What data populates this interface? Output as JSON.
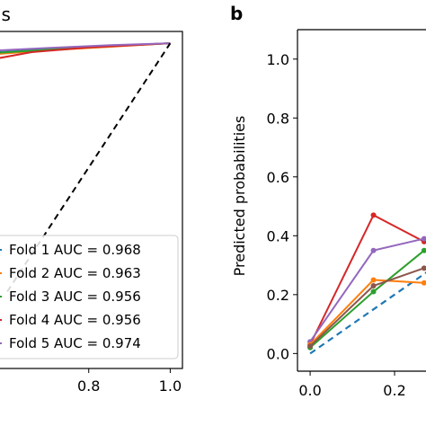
{
  "figure": {
    "left_title_fragment": "ls",
    "right_panel_letter": "b"
  },
  "chart_data": [
    {
      "type": "line",
      "panel": "a",
      "title": "ls",
      "xlabel": "",
      "ylabel": "",
      "xlim": [
        0.58,
        1.03
      ],
      "ylim": [
        0.45,
        1.02
      ],
      "x_ticks": [
        {
          "value": 0.8,
          "label": "0.8"
        },
        {
          "value": 1.0,
          "label": "1.0"
        }
      ],
      "y_ticks": [],
      "grid": false,
      "legend_position": "lower-right",
      "reference_line": {
        "x": [
          0.6,
          1.0
        ],
        "y": [
          0.58,
          1.0
        ],
        "style": "dashed",
        "color": "#000000"
      },
      "series": [
        {
          "name": "Fold 1 AUC = 0.968",
          "color": "#1f77b4",
          "x": [
            0.58,
            0.7,
            0.85,
            1.0
          ],
          "y": [
            0.985,
            0.99,
            0.995,
            1.0
          ]
        },
        {
          "name": "Fold 2 AUC = 0.963",
          "color": "#ff7f0e",
          "x": [
            0.58,
            0.7,
            0.85,
            1.0
          ],
          "y": [
            0.982,
            0.988,
            0.994,
            1.0
          ]
        },
        {
          "name": "Fold 3 AUC = 0.956",
          "color": "#2ca02c",
          "x": [
            0.58,
            0.72,
            0.88,
            1.0
          ],
          "y": [
            0.984,
            0.99,
            0.996,
            1.0
          ]
        },
        {
          "name": "Fold 4 AUC = 0.956",
          "color": "#d62728",
          "x": [
            0.58,
            0.66,
            0.8,
            1.0
          ],
          "y": [
            0.975,
            0.985,
            0.993,
            1.0
          ]
        },
        {
          "name": "Fold 5 AUC = 0.974",
          "color": "#9467bd",
          "x": [
            0.58,
            0.7,
            0.86,
            1.0
          ],
          "y": [
            0.988,
            0.992,
            0.997,
            1.0
          ]
        }
      ]
    },
    {
      "type": "line",
      "panel": "b",
      "title": "",
      "xlabel": "",
      "ylabel": "Predicted probabilities",
      "xlim": [
        -0.03,
        0.3
      ],
      "ylim": [
        -0.06,
        1.1
      ],
      "x_ticks": [
        {
          "value": 0.0,
          "label": "0.0"
        },
        {
          "value": 0.2,
          "label": "0.2"
        }
      ],
      "y_ticks": [
        {
          "value": 0.0,
          "label": "0.0"
        },
        {
          "value": 0.2,
          "label": "0.2"
        },
        {
          "value": 0.4,
          "label": "0.4"
        },
        {
          "value": 0.6,
          "label": "0.6"
        },
        {
          "value": 0.8,
          "label": "0.8"
        },
        {
          "value": 1.0,
          "label": "1.0"
        }
      ],
      "grid": false,
      "reference_line": {
        "x": [
          0.0,
          0.3
        ],
        "y": [
          0.0,
          0.3
        ],
        "style": "dashed",
        "color": "#1f77b4"
      },
      "series": [
        {
          "color": "#d62728",
          "x": [
            0.0,
            0.15,
            0.27
          ],
          "y": [
            0.03,
            0.47,
            0.38
          ]
        },
        {
          "color": "#9467bd",
          "x": [
            0.0,
            0.15,
            0.27
          ],
          "y": [
            0.04,
            0.35,
            0.39
          ]
        },
        {
          "color": "#ff7f0e",
          "x": [
            0.0,
            0.15,
            0.27
          ],
          "y": [
            0.03,
            0.25,
            0.24
          ]
        },
        {
          "color": "#2ca02c",
          "x": [
            0.0,
            0.15,
            0.27
          ],
          "y": [
            0.02,
            0.21,
            0.35
          ]
        },
        {
          "color": "#8c564b",
          "x": [
            0.0,
            0.15,
            0.27
          ],
          "y": [
            0.025,
            0.23,
            0.29
          ]
        }
      ]
    }
  ]
}
